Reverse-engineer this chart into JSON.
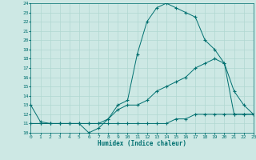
{
  "xlabel": "Humidex (Indice chaleur)",
  "bg_color": "#cde8e4",
  "grid_color": "#b0d8d0",
  "line_color": "#007070",
  "ylim": [
    10,
    24
  ],
  "xlim": [
    0,
    23
  ],
  "yticks": [
    10,
    11,
    12,
    13,
    14,
    15,
    16,
    17,
    18,
    19,
    20,
    21,
    22,
    23,
    24
  ],
  "xticks": [
    0,
    1,
    2,
    3,
    4,
    5,
    6,
    7,
    8,
    9,
    10,
    11,
    12,
    13,
    14,
    15,
    16,
    17,
    18,
    19,
    20,
    21,
    22,
    23
  ],
  "line1_x": [
    0,
    1,
    2,
    3,
    4,
    5,
    6,
    7,
    8,
    9,
    10,
    11,
    12,
    13,
    14,
    15,
    16,
    17,
    18,
    19,
    20,
    21,
    22,
    23
  ],
  "line1_y": [
    13,
    11.2,
    11,
    11,
    11,
    11,
    10,
    10.5,
    11.5,
    13,
    13.5,
    18.5,
    22,
    23.5,
    24,
    23.5,
    23,
    22.5,
    20,
    19,
    17.5,
    14.5,
    13,
    12
  ],
  "line2_x": [
    0,
    1,
    2,
    3,
    4,
    5,
    6,
    7,
    8,
    9,
    10,
    11,
    12,
    13,
    14,
    15,
    16,
    17,
    18,
    19,
    20,
    21,
    22,
    23
  ],
  "line2_y": [
    11,
    11,
    11,
    11,
    11,
    11,
    11,
    11,
    11.5,
    12.5,
    13,
    13,
    13.5,
    14.5,
    15,
    15.5,
    16,
    17,
    17.5,
    18,
    17.5,
    12,
    12,
    12
  ],
  "line3_x": [
    0,
    1,
    2,
    3,
    4,
    5,
    6,
    7,
    8,
    9,
    10,
    11,
    12,
    13,
    14,
    15,
    16,
    17,
    18,
    19,
    20,
    21,
    22,
    23
  ],
  "line3_y": [
    11,
    11,
    11,
    11,
    11,
    11,
    11,
    11,
    11,
    11,
    11,
    11,
    11,
    11,
    11,
    11.5,
    11.5,
    12,
    12,
    12,
    12,
    12,
    12,
    12
  ]
}
